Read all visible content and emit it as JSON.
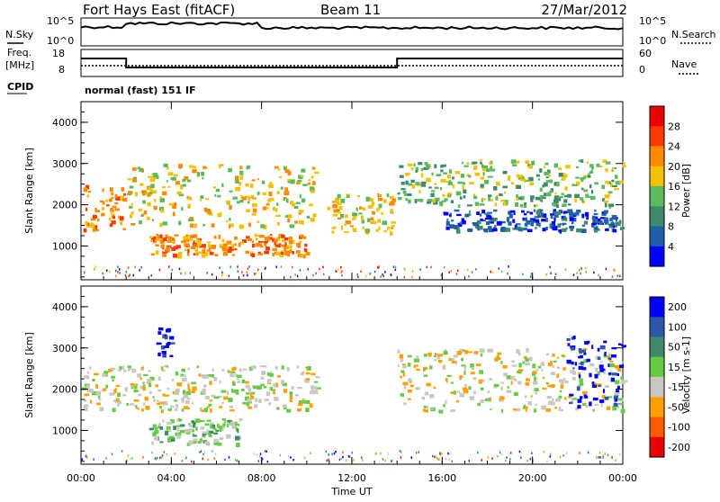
{
  "header": {
    "station": "Fort Hays East (fitACF)",
    "beam": "Beam 11",
    "date": "27/Mar/2012"
  },
  "noise_panel": {
    "left_label": "N.Sky",
    "right_label": "N.Search",
    "left_ticks": [
      "10^5",
      "10^0"
    ],
    "right_ticks": [
      "10^5",
      "10^0"
    ]
  },
  "freq_panel": {
    "left_label_1": "Freq.",
    "left_label_2": "[MHz]",
    "left_ticks": [
      "18",
      "8"
    ],
    "right_label": "Nave",
    "right_ticks": [
      "60",
      "0"
    ],
    "freq_steps": [
      {
        "t0": 0,
        "t1": 2,
        "mhz": 14
      },
      {
        "t0": 2,
        "t1": 14,
        "mhz": 10
      },
      {
        "t0": 14,
        "t1": 24,
        "mhz": 14
      }
    ]
  },
  "cpid_panel": {
    "label": "CPID",
    "value": "normal (fast) 151 IF"
  },
  "chart_data": [
    {
      "type": "heatmap",
      "name": "power",
      "ylabel": "Slant Range [km]",
      "ylim": [
        180,
        4500
      ],
      "yticks": [
        "1000",
        "2000",
        "3000",
        "4000"
      ],
      "xlim": [
        0,
        24
      ],
      "colorbar": {
        "label": "Power [dB]",
        "ticks": [
          "4",
          "8",
          "12",
          "16",
          "20",
          "24",
          "28"
        ],
        "colors": [
          "#0000ff",
          "#2060a8",
          "#3e8a6a",
          "#5cba5c",
          "#f2c200",
          "#ff8a00",
          "#ff3a00",
          "#e80000"
        ]
      },
      "regions": [
        {
          "t0": 0.0,
          "t1": 1.9,
          "r0": 1400,
          "r1": 2500,
          "level": 5
        },
        {
          "t0": 2.0,
          "t1": 10.5,
          "r0": 1500,
          "r1": 3000,
          "level": 4
        },
        {
          "t0": 3.0,
          "t1": 10.0,
          "r0": 800,
          "r1": 1300,
          "level": 5
        },
        {
          "t0": 10.9,
          "t1": 13.8,
          "r0": 1350,
          "r1": 2300,
          "level": 4
        },
        {
          "t0": 14.0,
          "t1": 24.0,
          "r0": 2000,
          "r1": 3100,
          "level": 3
        },
        {
          "t0": 16.0,
          "t1": 24.0,
          "r0": 1400,
          "r1": 1900,
          "level": 1
        }
      ]
    },
    {
      "type": "heatmap",
      "name": "velocity",
      "ylabel": "Slant Range [km]",
      "ylim": [
        180,
        4500
      ],
      "yticks": [
        "1000",
        "2000",
        "3000",
        "4000"
      ],
      "xlim": [
        0,
        24
      ],
      "colorbar": {
        "label": "Velocity [m s-1]",
        "ticks": [
          "200",
          "100",
          "50",
          "15",
          "-15",
          "-50",
          "-100",
          "-200"
        ],
        "colors": [
          "#0000ff",
          "#2f58a8",
          "#3e8a6a",
          "#66cc44",
          "#c8c8c0",
          "#ffa000",
          "#ff5a00",
          "#e80000"
        ]
      },
      "regions": [
        {
          "t0": 0.0,
          "t1": 10.5,
          "r0": 1500,
          "r1": 2600,
          "level": 4
        },
        {
          "t0": 3.0,
          "t1": 7.0,
          "r0": 700,
          "r1": 1300,
          "level": 3
        },
        {
          "t0": 3.3,
          "t1": 4.0,
          "r0": 2800,
          "r1": 3500,
          "level": 0
        },
        {
          "t0": 14.0,
          "t1": 24.0,
          "r0": 1500,
          "r1": 3000,
          "level": 4
        },
        {
          "t0": 21.5,
          "t1": 24.0,
          "r0": 1600,
          "r1": 3300,
          "level": 0
        }
      ]
    }
  ],
  "xaxis": {
    "label": "Time UT",
    "ticks": [
      "00:00",
      "04:00",
      "08:00",
      "12:00",
      "16:00",
      "20:00",
      "00:00"
    ]
  }
}
